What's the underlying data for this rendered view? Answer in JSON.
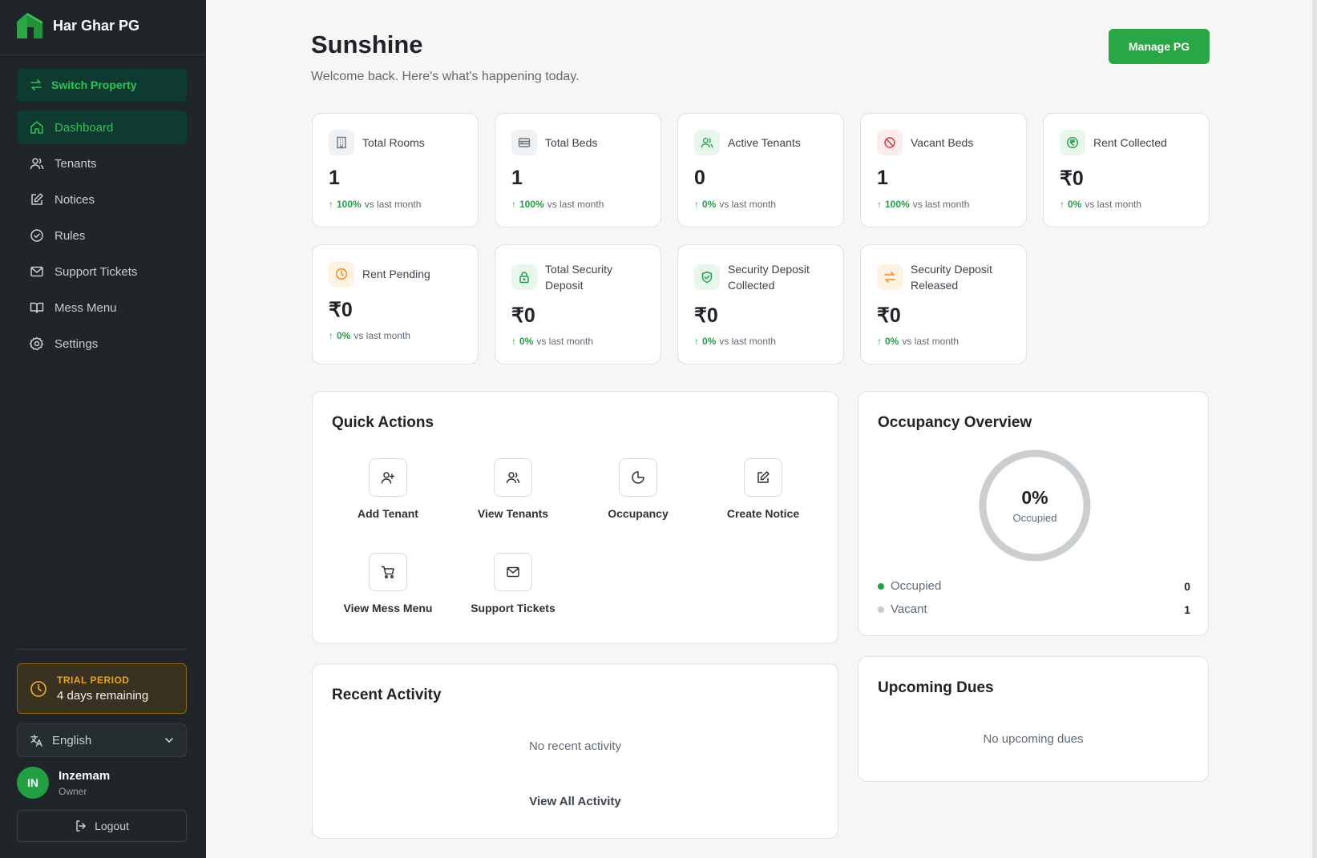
{
  "brand": {
    "name": "Har Ghar PG"
  },
  "sidebar": {
    "switch_label": "Switch Property",
    "items": [
      {
        "label": "Dashboard",
        "icon": "home-icon",
        "active": true
      },
      {
        "label": "Tenants",
        "icon": "users-icon"
      },
      {
        "label": "Notices",
        "icon": "edit-icon"
      },
      {
        "label": "Rules",
        "icon": "check-circle-icon"
      },
      {
        "label": "Support Tickets",
        "icon": "mail-icon"
      },
      {
        "label": "Mess Menu",
        "icon": "book-icon"
      },
      {
        "label": "Settings",
        "icon": "gear-icon"
      }
    ],
    "trial": {
      "label": "TRIAL PERIOD",
      "days": "4 days remaining"
    },
    "language": "English",
    "user": {
      "initials": "IN",
      "name": "Inzemam",
      "role": "Owner"
    },
    "logout": "Logout"
  },
  "header": {
    "title": "Sunshine",
    "subtitle": "Welcome back. Here's what's happening today.",
    "manage_button": "Manage PG"
  },
  "stats": [
    {
      "title": "Total Rooms",
      "value": "1",
      "pct": "100%",
      "trend": "vs last month",
      "icon": "building-icon",
      "icon_color": "#6b7480",
      "icon_bg": "#f0f1f3"
    },
    {
      "title": "Total Beds",
      "value": "1",
      "pct": "100%",
      "trend": "vs last month",
      "icon": "bed-icon",
      "icon_color": "#6b7480",
      "icon_bg": "#f0f1f3"
    },
    {
      "title": "Active Tenants",
      "value": "0",
      "pct": "0%",
      "trend": "vs last month",
      "icon": "users-icon",
      "icon_color": "#22a046",
      "icon_bg": "#e8f6ec"
    },
    {
      "title": "Vacant Beds",
      "value": "1",
      "pct": "100%",
      "trend": "vs last month",
      "icon": "ban-icon",
      "icon_color": "#e0393e",
      "icon_bg": "#fdecec"
    },
    {
      "title": "Rent Collected",
      "value": "₹0",
      "pct": "0%",
      "trend": "vs last month",
      "icon": "rupee-circle-icon",
      "icon_color": "#22a046",
      "icon_bg": "#e8f6ec"
    },
    {
      "title": "Rent Pending",
      "value": "₹0",
      "pct": "0%",
      "trend": "vs last month",
      "icon": "clock-icon",
      "icon_color": "#ef8a1c",
      "icon_bg": "#fff2e3"
    },
    {
      "title": "Total Security Deposit",
      "value": "₹0",
      "pct": "0%",
      "trend": "vs last month",
      "icon": "lock-icon",
      "icon_color": "#22a046",
      "icon_bg": "#e8f6ec"
    },
    {
      "title": "Security Deposit Collected",
      "value": "₹0",
      "pct": "0%",
      "trend": "vs last month",
      "icon": "shield-check-icon",
      "icon_color": "#22a046",
      "icon_bg": "#e8f6ec"
    },
    {
      "title": "Security Deposit Released",
      "value": "₹0",
      "pct": "0%",
      "trend": "vs last month",
      "icon": "swap-icon",
      "icon_color": "#ef8a1c",
      "icon_bg": "#fff2e3"
    }
  ],
  "quick_actions": {
    "title": "Quick Actions",
    "items": [
      {
        "label": "Add Tenant",
        "icon": "user-plus-icon"
      },
      {
        "label": "View Tenants",
        "icon": "users-icon"
      },
      {
        "label": "Occupancy",
        "icon": "pie-chart-icon"
      },
      {
        "label": "Create Notice",
        "icon": "edit-icon"
      },
      {
        "label": "View Mess Menu",
        "icon": "cart-icon"
      },
      {
        "label": "Support Tickets",
        "icon": "mail-icon"
      }
    ]
  },
  "occupancy": {
    "title": "Occupancy Overview",
    "percent": "0%",
    "percent_label": "Occupied",
    "occupied_fraction": 0,
    "legend": [
      {
        "label": "Occupied",
        "value": "0",
        "color": "#22a046"
      },
      {
        "label": "Vacant",
        "value": "1",
        "color": "#c9cdd1"
      }
    ]
  },
  "recent_activity": {
    "title": "Recent Activity",
    "empty": "No recent activity",
    "view_all": "View All Activity"
  },
  "upcoming_dues": {
    "title": "Upcoming Dues",
    "empty": "No upcoming dues"
  },
  "colors": {
    "accent": "#2aa744",
    "sidebar_bg": "#1f2528",
    "active_bg": "#0e3a2f"
  }
}
